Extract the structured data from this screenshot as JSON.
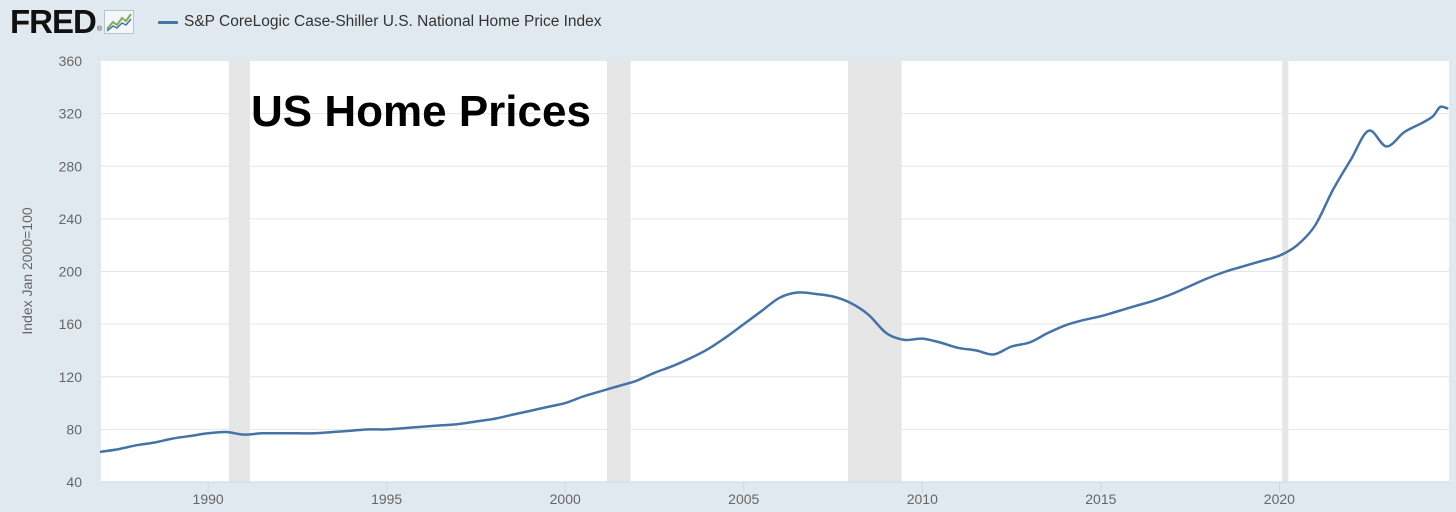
{
  "header": {
    "logo_text": "FRED",
    "logo_registered": "®",
    "logo_icon": "line-chart-icon"
  },
  "chart_data": {
    "type": "line",
    "series": [
      {
        "name": "S&P CoreLogic Case-Shiller U.S. National Home Price Index",
        "color": "#4572a7",
        "points": [
          [
            1987.0,
            63
          ],
          [
            1987.5,
            65
          ],
          [
            1988.0,
            68
          ],
          [
            1988.5,
            70
          ],
          [
            1989.0,
            73
          ],
          [
            1989.5,
            75
          ],
          [
            1990.0,
            77
          ],
          [
            1990.5,
            78
          ],
          [
            1991.0,
            76
          ],
          [
            1991.5,
            77
          ],
          [
            1992.0,
            77
          ],
          [
            1992.5,
            77
          ],
          [
            1993.0,
            77
          ],
          [
            1993.5,
            78
          ],
          [
            1994.0,
            79
          ],
          [
            1994.5,
            80
          ],
          [
            1995.0,
            80
          ],
          [
            1995.5,
            81
          ],
          [
            1996.0,
            82
          ],
          [
            1996.5,
            83
          ],
          [
            1997.0,
            84
          ],
          [
            1997.5,
            86
          ],
          [
            1998.0,
            88
          ],
          [
            1998.5,
            91
          ],
          [
            1999.0,
            94
          ],
          [
            1999.5,
            97
          ],
          [
            2000.0,
            100
          ],
          [
            2000.5,
            105
          ],
          [
            2001.0,
            109
          ],
          [
            2001.5,
            113
          ],
          [
            2002.0,
            117
          ],
          [
            2002.5,
            123
          ],
          [
            2003.0,
            128
          ],
          [
            2003.5,
            134
          ],
          [
            2004.0,
            141
          ],
          [
            2004.5,
            150
          ],
          [
            2005.0,
            160
          ],
          [
            2005.5,
            170
          ],
          [
            2006.0,
            180
          ],
          [
            2006.5,
            184
          ],
          [
            2007.0,
            183
          ],
          [
            2007.5,
            181
          ],
          [
            2008.0,
            176
          ],
          [
            2008.5,
            167
          ],
          [
            2009.0,
            153
          ],
          [
            2009.5,
            148
          ],
          [
            2010.0,
            149
          ],
          [
            2010.5,
            146
          ],
          [
            2011.0,
            142
          ],
          [
            2011.5,
            140
          ],
          [
            2012.0,
            137
          ],
          [
            2012.5,
            143
          ],
          [
            2013.0,
            146
          ],
          [
            2013.5,
            153
          ],
          [
            2014.0,
            159
          ],
          [
            2014.5,
            163
          ],
          [
            2015.0,
            166
          ],
          [
            2015.5,
            170
          ],
          [
            2016.0,
            174
          ],
          [
            2016.5,
            178
          ],
          [
            2017.0,
            183
          ],
          [
            2017.5,
            189
          ],
          [
            2018.0,
            195
          ],
          [
            2018.5,
            200
          ],
          [
            2019.0,
            204
          ],
          [
            2019.5,
            208
          ],
          [
            2020.0,
            212
          ],
          [
            2020.5,
            220
          ],
          [
            2021.0,
            235
          ],
          [
            2021.5,
            262
          ],
          [
            2022.0,
            285
          ],
          [
            2022.5,
            307
          ],
          [
            2023.0,
            295
          ],
          [
            2023.5,
            306
          ],
          [
            2024.0,
            313
          ],
          [
            2024.3,
            318
          ],
          [
            2024.5,
            325
          ],
          [
            2024.7,
            324
          ]
        ]
      }
    ],
    "ylabel": "Index Jan 2000=100",
    "yticks": [
      40,
      80,
      120,
      160,
      200,
      240,
      280,
      320,
      360
    ],
    "ylim": [
      40,
      360
    ],
    "xticks": [
      1990,
      1995,
      2000,
      2005,
      2010,
      2015,
      2020
    ],
    "xlim": [
      1987.0,
      2024.75
    ],
    "recessions": [
      [
        1990.58,
        1991.17
      ],
      [
        2001.17,
        2001.83
      ],
      [
        2007.92,
        2009.42
      ],
      [
        2020.08,
        2020.25
      ]
    ],
    "grid": true,
    "legend": "top-left",
    "annotation": "US Home Prices"
  }
}
